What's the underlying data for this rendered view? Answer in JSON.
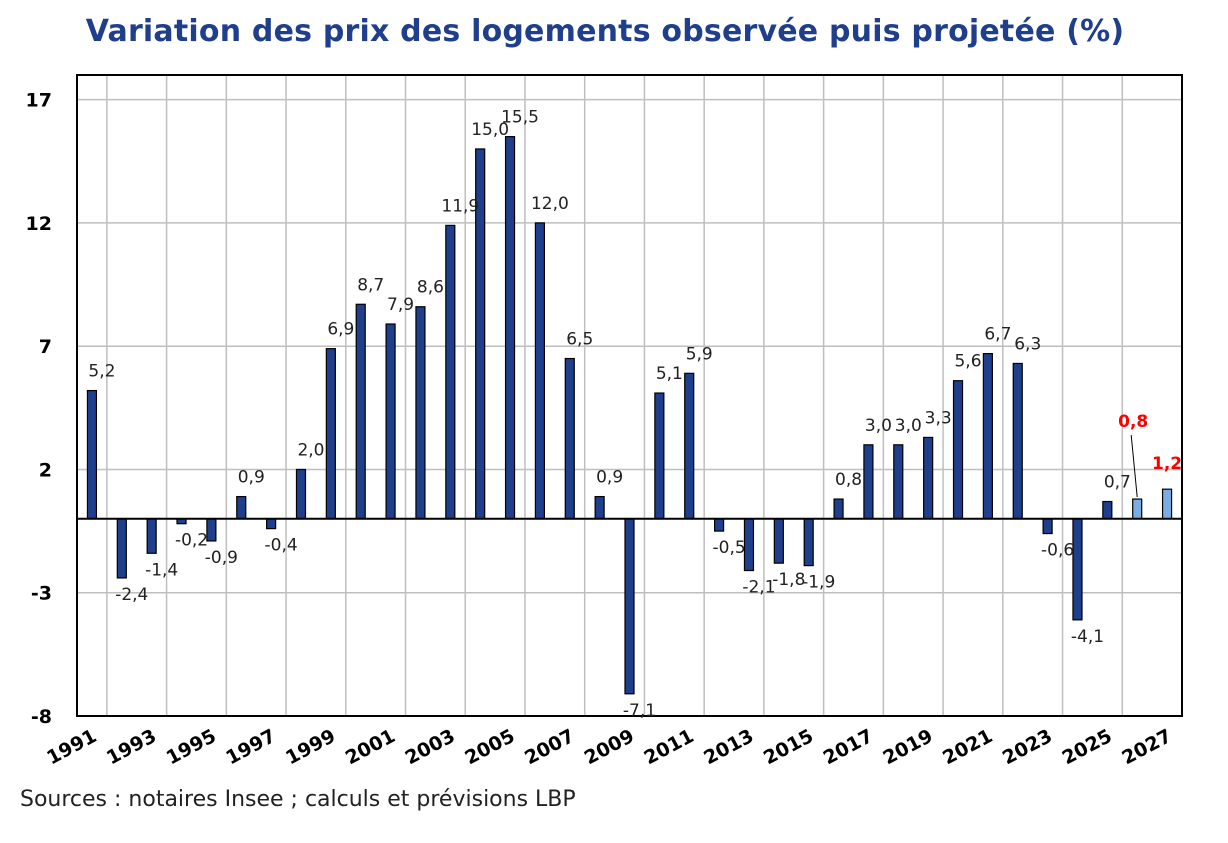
{
  "title": "Variation des prix des logements observée puis projetée (%)",
  "source": "Sources : notaires Insee ; calculs et prévisions LBP",
  "colors": {
    "title": "#1f3e8c",
    "bar_observed": "#1f3e8c",
    "bar_forecast": "#7aaee0",
    "forecast_label": "#ff0000",
    "grid": "#bfbfbf"
  },
  "chart_data": {
    "type": "bar",
    "title": "Variation des prix des logements observée puis projetée (%)",
    "xlabel": "",
    "ylabel": "",
    "ylim": [
      -8,
      18
    ],
    "yticks": [
      17,
      12,
      7,
      2,
      -3,
      -8
    ],
    "x_tick_labels": [
      "1991",
      "1993",
      "1995",
      "1997",
      "1999",
      "2001",
      "2003",
      "2005",
      "2007",
      "2009",
      "2011",
      "2013",
      "2015",
      "2017",
      "2019",
      "2021",
      "2023",
      "2025",
      "2027"
    ],
    "grid": true,
    "categories": [
      "1991",
      "1992",
      "1993",
      "1994",
      "1995",
      "1996",
      "1997",
      "1998",
      "1999",
      "2000",
      "2001",
      "2002",
      "2003",
      "2004",
      "2005",
      "2006",
      "2007",
      "2008",
      "2009",
      "2010",
      "2011",
      "2012",
      "2013",
      "2014",
      "2015",
      "2016",
      "2017",
      "2018",
      "2019",
      "2020",
      "2021",
      "2022",
      "2023",
      "2024",
      "2025",
      "2026",
      "2027"
    ],
    "values": [
      5.2,
      -2.4,
      -1.4,
      -0.2,
      -0.9,
      0.9,
      -0.4,
      2.0,
      6.9,
      8.7,
      7.9,
      8.6,
      11.9,
      15.0,
      15.5,
      12.0,
      6.5,
      0.9,
      -7.1,
      5.1,
      5.9,
      -0.5,
      -2.1,
      -1.8,
      -1.9,
      0.8,
      3.0,
      3.0,
      3.3,
      5.6,
      6.7,
      6.3,
      -0.6,
      -4.1,
      0.7,
      0.8,
      1.2
    ],
    "data_labels": [
      "5,2",
      "-2,4",
      "-1,4",
      "-0,2",
      "-0,9",
      "0,9",
      "-0,4",
      "2,0",
      "6,9",
      "8,7",
      "7,9",
      "8,6",
      "11,9",
      "15,0",
      "15,5",
      "12,0",
      "6,5",
      "0,9",
      "-7,1",
      "5,1",
      "5,9",
      "-0,5",
      "-2,1",
      "-1,8",
      "-1,9",
      "0,8",
      "3,0",
      "3,0",
      "3,3",
      "5,6",
      "6,7",
      "6,3",
      "-0,6",
      "-4,1",
      "0,7",
      "0,8",
      "1,2"
    ],
    "forecast": [
      false,
      false,
      false,
      false,
      false,
      false,
      false,
      false,
      false,
      false,
      false,
      false,
      false,
      false,
      false,
      false,
      false,
      false,
      false,
      false,
      false,
      false,
      false,
      false,
      false,
      false,
      false,
      false,
      false,
      false,
      false,
      false,
      false,
      false,
      false,
      true,
      true
    ]
  }
}
